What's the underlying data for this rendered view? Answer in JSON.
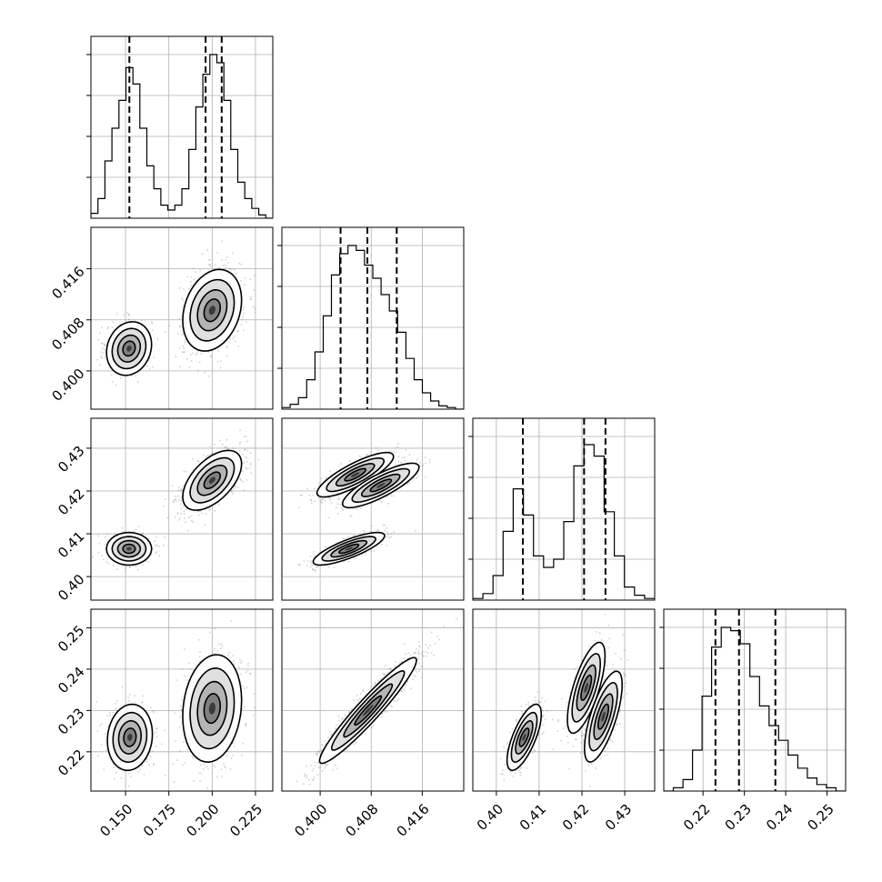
{
  "chart_data": {
    "type": "corner",
    "parameters": 4,
    "colors": {
      "ink": "#000000",
      "grid": "#b0b0b0",
      "sample_points": "#808080",
      "contour_fills": [
        "#ffffff",
        "#e0e0e0",
        "#b4b4b4",
        "#808080",
        "#3a3a3a"
      ]
    },
    "grid": true,
    "axes": [
      {
        "range": [
          0.13,
          0.235
        ],
        "ticks": [
          0.15,
          0.175,
          0.2,
          0.225
        ],
        "tick_labels": [
          "0.150",
          "0.175",
          "0.200",
          "0.225"
        ]
      },
      {
        "range": [
          0.394,
          0.4225
        ],
        "ticks": [
          0.4,
          0.408,
          0.416
        ],
        "tick_labels": [
          "0.400",
          "0.408",
          "0.416"
        ]
      },
      {
        "range": [
          0.3945,
          0.437
        ],
        "ticks": [
          0.4,
          0.41,
          0.42,
          0.43
        ],
        "tick_labels": [
          "0.40",
          "0.41",
          "0.42",
          "0.43"
        ]
      },
      {
        "range": [
          0.2105,
          0.2545
        ],
        "ticks": [
          0.22,
          0.23,
          0.24,
          0.25
        ],
        "tick_labels": [
          "0.22",
          "0.23",
          "0.24",
          "0.25"
        ]
      }
    ],
    "histograms": [
      {
        "param": 0,
        "bin_edges_range": [
          0.13,
          0.235
        ],
        "counts": [
          0.03,
          0.12,
          0.35,
          0.55,
          0.72,
          0.92,
          0.82,
          0.55,
          0.32,
          0.18,
          0.08,
          0.05,
          0.08,
          0.18,
          0.42,
          0.68,
          0.88,
          1.0,
          0.95,
          0.72,
          0.42,
          0.22,
          0.12,
          0.06,
          0.02,
          0.0
        ],
        "quantiles": [
          0.1522,
          0.1962,
          0.2055
        ]
      },
      {
        "param": 1,
        "bin_edges_range": [
          0.394,
          0.4225
        ],
        "counts": [
          0.01,
          0.03,
          0.07,
          0.18,
          0.35,
          0.57,
          0.82,
          0.95,
          1.0,
          0.97,
          0.88,
          0.8,
          0.7,
          0.6,
          0.47,
          0.31,
          0.18,
          0.1,
          0.05,
          0.02,
          0.01,
          0.0
        ],
        "quantiles": [
          0.4032,
          0.4074,
          0.412
        ]
      },
      {
        "param": 2,
        "bin_edges_range": [
          0.3945,
          0.437
        ],
        "counts": [
          0.01,
          0.04,
          0.15,
          0.42,
          0.68,
          0.52,
          0.27,
          0.2,
          0.25,
          0.48,
          0.82,
          0.95,
          0.88,
          0.54,
          0.27,
          0.08,
          0.03,
          0.01
        ],
        "quantiles": [
          0.4062,
          0.4205,
          0.4255
        ]
      },
      {
        "param": 3,
        "bin_edges_range": [
          0.2105,
          0.2545
        ],
        "counts": [
          0.0,
          0.02,
          0.07,
          0.25,
          0.58,
          0.88,
          1.0,
          0.98,
          0.9,
          0.7,
          0.52,
          0.4,
          0.31,
          0.22,
          0.14,
          0.08,
          0.04,
          0.02,
          0.0
        ],
        "quantiles": [
          0.223,
          0.2287,
          0.2375
        ]
      }
    ],
    "scatter_panels": [
      {
        "x_param": 0,
        "y_param": 1,
        "modes": [
          {
            "weight": 0.35,
            "mean": [
              0.152,
              0.4035
            ],
            "sd": [
              0.0065,
              0.0021
            ],
            "corr": 0.15
          },
          {
            "weight": 0.65,
            "mean": [
              0.2,
              0.4095
            ],
            "sd": [
              0.0085,
              0.0032
            ],
            "corr": 0.25
          }
        ]
      },
      {
        "x_param": 0,
        "y_param": 2,
        "modes": [
          {
            "weight": 0.35,
            "mean": [
              0.152,
              0.4065
            ],
            "sd": [
              0.0065,
              0.0019
            ],
            "corr": 0.0
          },
          {
            "weight": 0.65,
            "mean": [
              0.2,
              0.4225
            ],
            "sd": [
              0.0085,
              0.0035
            ],
            "corr": 0.55
          }
        ]
      },
      {
        "x_param": 1,
        "y_param": 2,
        "modes": [
          {
            "weight": 0.35,
            "mean": [
              0.4045,
              0.4065
            ],
            "sd": [
              0.0028,
              0.0019
            ],
            "corr": 0.8
          },
          {
            "weight": 0.33,
            "mean": [
              0.4055,
              0.4238
            ],
            "sd": [
              0.003,
              0.0026
            ],
            "corr": 0.82
          },
          {
            "weight": 0.32,
            "mean": [
              0.4095,
              0.4213
            ],
            "sd": [
              0.003,
              0.0026
            ],
            "corr": 0.82
          }
        ]
      },
      {
        "x_param": 0,
        "y_param": 3,
        "modes": [
          {
            "weight": 0.35,
            "mean": [
              0.1525,
              0.2235
            ],
            "sd": [
              0.0065,
              0.004
            ],
            "corr": 0.1
          },
          {
            "weight": 0.65,
            "mean": [
              0.2,
              0.2305
            ],
            "sd": [
              0.0085,
              0.0065
            ],
            "corr": 0.15
          }
        ]
      },
      {
        "x_param": 1,
        "y_param": 3,
        "modes": [
          {
            "weight": 1.0,
            "mean": [
              0.4075,
              0.23
            ],
            "sd": [
              0.0038,
              0.0064
            ],
            "corr": 0.95
          }
        ]
      },
      {
        "x_param": 2,
        "y_param": 3,
        "modes": [
          {
            "weight": 0.35,
            "mean": [
              0.4065,
              0.2235
            ],
            "sd": [
              0.002,
              0.004
            ],
            "corr": 0.7
          },
          {
            "weight": 0.32,
            "mean": [
              0.421,
              0.2355
            ],
            "sd": [
              0.0022,
              0.0055
            ],
            "corr": 0.7
          },
          {
            "weight": 0.33,
            "mean": [
              0.425,
              0.2285
            ],
            "sd": [
              0.0022,
              0.0055
            ],
            "corr": 0.7
          }
        ]
      }
    ]
  }
}
